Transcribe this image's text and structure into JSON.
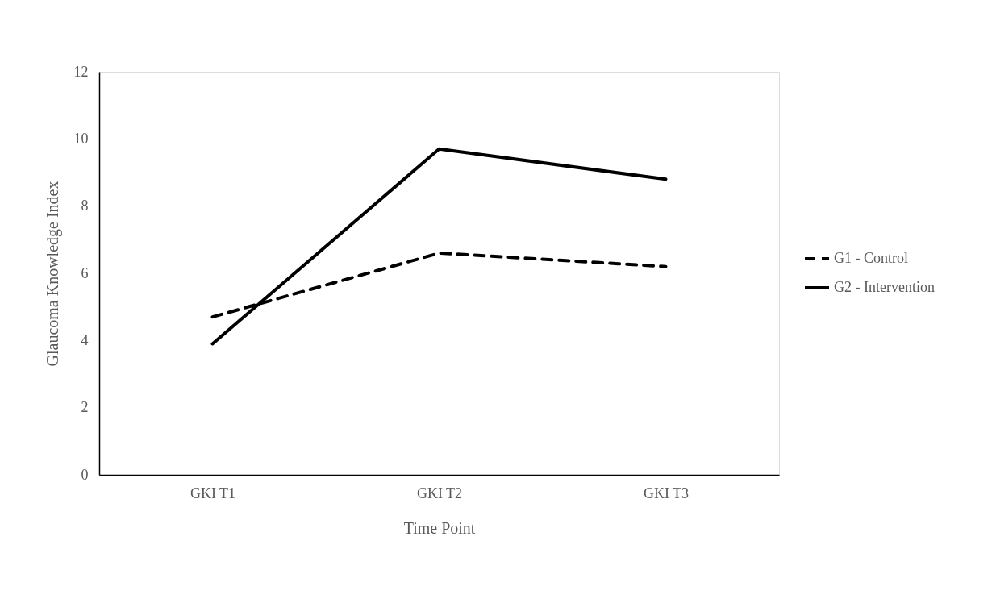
{
  "chart_data": {
    "type": "line",
    "xlabel": "Time Point",
    "ylabel": "Glaucoma Knowledge Index",
    "categories": [
      "GKI T1",
      "GKI T2",
      "GKI T3"
    ],
    "series": [
      {
        "name": "G1 - Control",
        "color": "#000000",
        "line_style": "dashed",
        "values": [
          4.7,
          6.6,
          6.2
        ]
      },
      {
        "name": "G2 - Intervention",
        "color": "#000000",
        "line_style": "solid",
        "values": [
          3.9,
          9.7,
          8.8
        ]
      }
    ],
    "ylim": [
      0,
      12
    ],
    "yticks": [
      0,
      2,
      4,
      6,
      8,
      10,
      12
    ],
    "grid": false,
    "legend": "right",
    "marker": "none"
  }
}
